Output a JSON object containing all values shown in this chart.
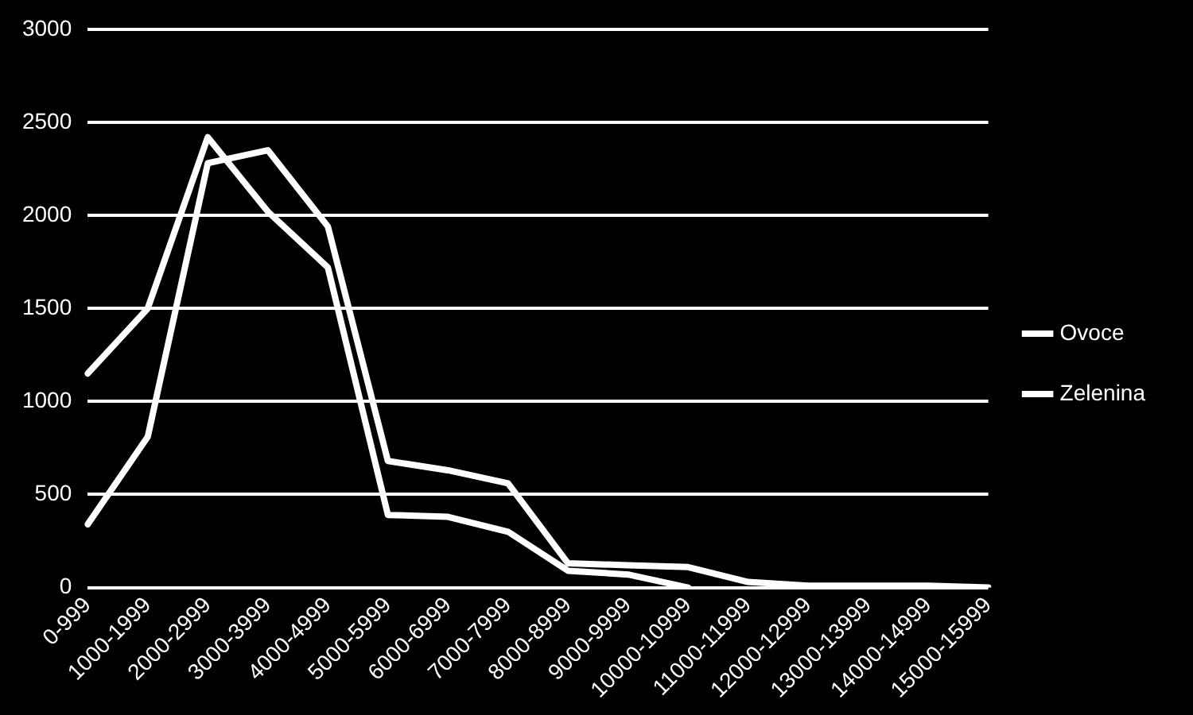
{
  "chart_data": {
    "type": "line",
    "categories": [
      "0-999",
      "1000-1999",
      "2000-2999",
      "3000-3999",
      "4000-4999",
      "5000-5999",
      "6000-6999",
      "7000-7999",
      "8000-8999",
      "9000-9999",
      "10000-10999",
      "11000-11999",
      "12000-12999",
      "13000-13999",
      "14000-14999",
      "15000-15999"
    ],
    "series": [
      {
        "name": "Ovoce",
        "color": "#ffffff",
        "values": [
          1150,
          1500,
          2420,
          2020,
          1720,
          390,
          380,
          300,
          90,
          70,
          0,
          null,
          null,
          null,
          null,
          null
        ]
      },
      {
        "name": "Zelenina",
        "color": "#ffffff",
        "values": [
          340,
          810,
          2280,
          2350,
          1940,
          680,
          630,
          560,
          130,
          120,
          110,
          30,
          10,
          10,
          10,
          0
        ]
      }
    ],
    "ylim": [
      0,
      3000
    ],
    "yticks": [
      0,
      500,
      1000,
      1500,
      2000,
      2500,
      3000
    ],
    "grid": "y",
    "legend": "right",
    "marker": "none",
    "line_style": "solid"
  }
}
